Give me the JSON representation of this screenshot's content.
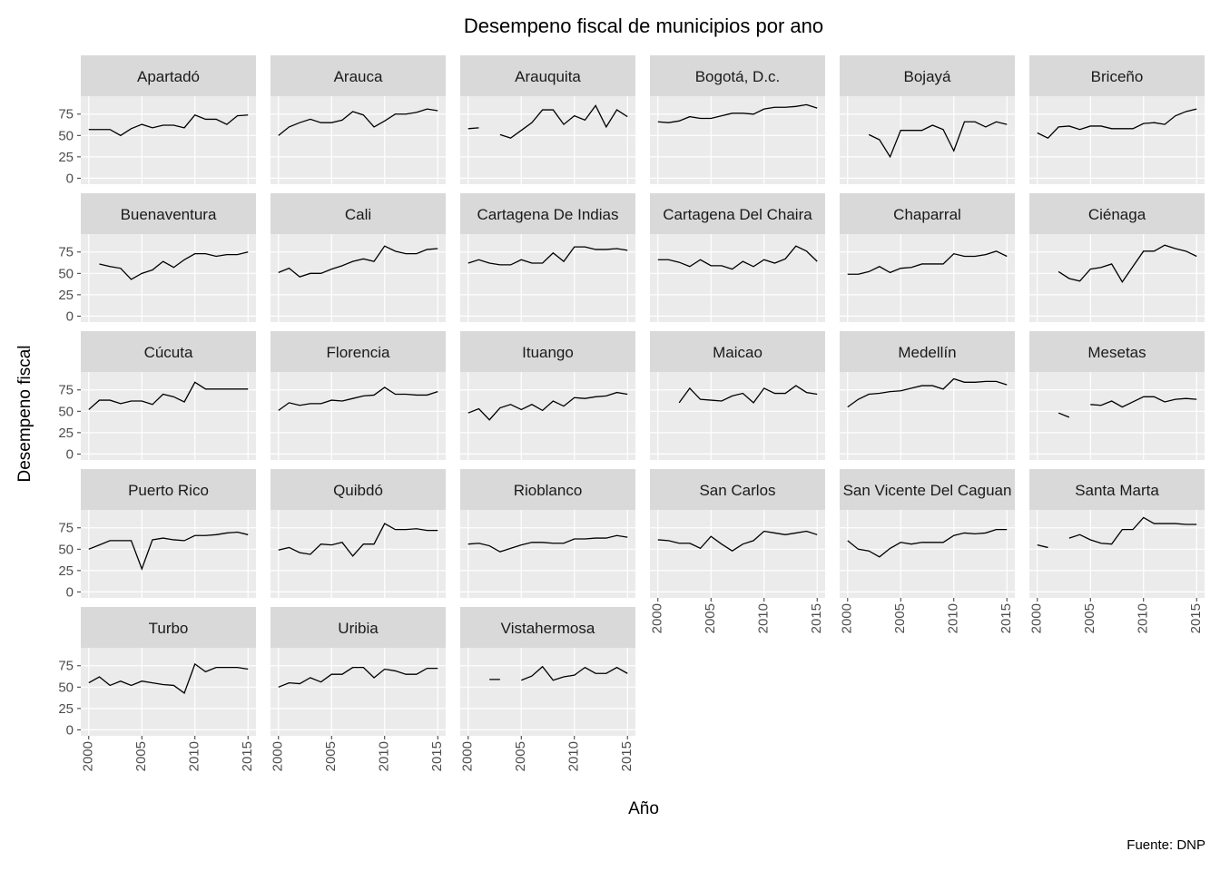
{
  "chart_data": {
    "type": "line",
    "title": "Desempeno fiscal de municipios por ano",
    "x_label": "Año",
    "y_label": "Desempeno fiscal",
    "caption": "Fuente: DNP",
    "color": "#000000",
    "grid": true,
    "x": [
      2000,
      2001,
      2002,
      2003,
      2004,
      2005,
      2006,
      2007,
      2008,
      2009,
      2010,
      2011,
      2012,
      2013,
      2014,
      2015
    ],
    "xlim": [
      1999.25,
      2015.75
    ],
    "xticks": [
      2000,
      2005,
      2010,
      2015
    ],
    "ylim": [
      -7,
      96
    ],
    "yticks": [
      0,
      25,
      50,
      75
    ],
    "series": [
      {
        "name": "Apartadó",
        "values": [
          57,
          57,
          57,
          50,
          58,
          63,
          59,
          62,
          62,
          59,
          74,
          69,
          69,
          63,
          73,
          74
        ]
      },
      {
        "name": "Arauca",
        "values": [
          50,
          60,
          65,
          69,
          65,
          65,
          68,
          78,
          74,
          60,
          67,
          75,
          75,
          77,
          81,
          79
        ]
      },
      {
        "name": "Arauquita",
        "values": [
          58,
          59,
          null,
          51,
          47,
          56,
          65,
          80,
          80,
          63,
          73,
          68,
          85,
          60,
          80,
          72
        ]
      },
      {
        "name": "Bogotá, D.c.",
        "values": [
          66,
          65,
          67,
          72,
          70,
          70,
          73,
          76,
          76,
          75,
          81,
          83,
          83,
          84,
          86,
          82
        ]
      },
      {
        "name": "Bojayá",
        "values": [
          null,
          null,
          51,
          45,
          25,
          56,
          56,
          56,
          62,
          57,
          32,
          66,
          66,
          60,
          66,
          63
        ]
      },
      {
        "name": "Briceño",
        "values": [
          53,
          47,
          60,
          61,
          57,
          61,
          61,
          58,
          58,
          58,
          64,
          65,
          63,
          73,
          78,
          81
        ]
      },
      {
        "name": "Buenaventura",
        "values": [
          null,
          61,
          58,
          56,
          43,
          50,
          54,
          64,
          57,
          66,
          73,
          73,
          70,
          72,
          72,
          75
        ]
      },
      {
        "name": "Cali",
        "values": [
          51,
          56,
          46,
          50,
          50,
          55,
          59,
          64,
          67,
          64,
          82,
          76,
          73,
          73,
          78,
          79
        ]
      },
      {
        "name": "Cartagena De Indias",
        "values": [
          62,
          66,
          62,
          60,
          60,
          66,
          62,
          62,
          74,
          64,
          81,
          81,
          78,
          78,
          79,
          77
        ]
      },
      {
        "name": "Cartagena Del Chaira",
        "values": [
          66,
          66,
          63,
          58,
          66,
          59,
          59,
          55,
          64,
          58,
          66,
          62,
          67,
          82,
          76,
          64
        ]
      },
      {
        "name": "Chaparral",
        "values": [
          49,
          49,
          52,
          58,
          51,
          56,
          57,
          61,
          61,
          61,
          73,
          70,
          70,
          72,
          76,
          70
        ]
      },
      {
        "name": "Ciénaga",
        "values": [
          null,
          null,
          52,
          44,
          41,
          55,
          57,
          61,
          40,
          58,
          76,
          76,
          83,
          79,
          76,
          70
        ]
      },
      {
        "name": "Cúcuta",
        "values": [
          52,
          63,
          63,
          59,
          62,
          62,
          58,
          70,
          67,
          61,
          84,
          76,
          76,
          76,
          76,
          76
        ]
      },
      {
        "name": "Florencia",
        "values": [
          51,
          60,
          57,
          59,
          59,
          63,
          62,
          65,
          68,
          69,
          78,
          70,
          70,
          69,
          69,
          73
        ]
      },
      {
        "name": "Ituango",
        "values": [
          48,
          53,
          40,
          54,
          58,
          52,
          58,
          51,
          62,
          56,
          66,
          65,
          67,
          68,
          72,
          70
        ]
      },
      {
        "name": "Maicao",
        "values": [
          null,
          null,
          60,
          77,
          64,
          63,
          62,
          68,
          71,
          60,
          77,
          71,
          71,
          80,
          72,
          70
        ]
      },
      {
        "name": "Medellín",
        "values": [
          55,
          64,
          70,
          71,
          73,
          74,
          77,
          80,
          80,
          76,
          88,
          84,
          84,
          85,
          85,
          81
        ]
      },
      {
        "name": "Mesetas",
        "values": [
          null,
          null,
          48,
          43,
          null,
          58,
          57,
          62,
          55,
          61,
          67,
          67,
          61,
          64,
          65,
          64
        ]
      },
      {
        "name": "Puerto Rico",
        "values": [
          50,
          55,
          60,
          60,
          60,
          27,
          61,
          63,
          61,
          60,
          66,
          66,
          67,
          69,
          70,
          67
        ]
      },
      {
        "name": "Quibdó",
        "values": [
          49,
          52,
          46,
          44,
          56,
          55,
          58,
          42,
          56,
          56,
          80,
          73,
          73,
          74,
          72,
          72
        ]
      },
      {
        "name": "Rioblanco",
        "values": [
          56,
          57,
          54,
          47,
          51,
          55,
          58,
          58,
          57,
          57,
          62,
          62,
          63,
          63,
          66,
          64
        ]
      },
      {
        "name": "San Carlos",
        "values": [
          61,
          60,
          57,
          57,
          51,
          65,
          56,
          48,
          56,
          60,
          71,
          69,
          67,
          69,
          71,
          67
        ]
      },
      {
        "name": "San Vicente Del Caguan",
        "values": [
          60,
          50,
          48,
          41,
          51,
          58,
          56,
          58,
          58,
          58,
          66,
          69,
          68,
          69,
          73,
          73
        ]
      },
      {
        "name": "Santa Marta",
        "values": [
          55,
          52,
          null,
          63,
          67,
          61,
          57,
          56,
          73,
          73,
          87,
          80,
          80,
          80,
          79,
          79
        ]
      },
      {
        "name": "Turbo",
        "values": [
          55,
          62,
          52,
          57,
          52,
          57,
          55,
          53,
          52,
          43,
          77,
          68,
          73,
          73,
          73,
          71
        ]
      },
      {
        "name": "Uribia",
        "values": [
          50,
          55,
          54,
          61,
          56,
          65,
          65,
          73,
          73,
          61,
          71,
          69,
          65,
          65,
          72,
          72
        ]
      },
      {
        "name": "Vistahermosa",
        "values": [
          null,
          null,
          59,
          59,
          null,
          58,
          63,
          74,
          58,
          62,
          64,
          73,
          66,
          66,
          73,
          66
        ]
      }
    ]
  }
}
